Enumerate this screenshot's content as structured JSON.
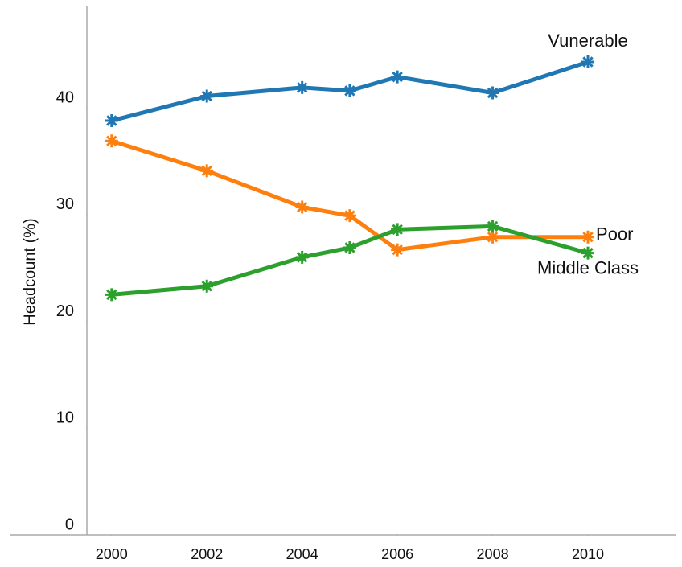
{
  "chart_data": {
    "type": "line",
    "y_label": "Headcount (%)",
    "x": [
      2000,
      2002,
      2004,
      2005,
      2006,
      2008,
      2010
    ],
    "series": [
      {
        "name": "Vunerable",
        "color": "#1f77b4",
        "values": [
          38.8,
          41.1,
          41.9,
          41.6,
          42.9,
          41.4,
          44.3
        ]
      },
      {
        "name": "Poor",
        "color": "#ff7f0e",
        "values": [
          36.9,
          34.1,
          30.7,
          29.9,
          26.7,
          27.9,
          27.9
        ]
      },
      {
        "name": "Middle Class",
        "color": "#2ca02c",
        "values": [
          22.5,
          23.3,
          26.0,
          26.9,
          28.6,
          28.9,
          26.4
        ]
      }
    ],
    "xlim": [
      1999.48,
      2011.84
    ],
    "xticks": [
      2000,
      2002,
      2004,
      2006,
      2008,
      2010
    ],
    "ylim": [
      0,
      49.5
    ],
    "yticks": [
      0,
      10,
      20,
      30,
      40
    ],
    "grid": false,
    "marker": "asterisk"
  }
}
